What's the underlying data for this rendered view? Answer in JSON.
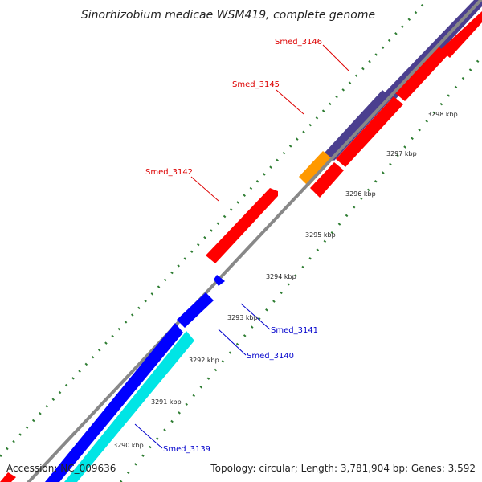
{
  "title": "Sinorhizobium medicae WSM419, complete genome",
  "footer": {
    "accession": "Accession: NC_009636",
    "summary": "Topology: circular; Length: 3,781,904 bp; Genes: 3,592"
  },
  "colors": {
    "backbone": "#888888",
    "tick": "#2e7d32",
    "forward_gene": "#ff0000",
    "reverse_gene": "#0000ff",
    "cyan_track": "#00e5e5",
    "purple_track": "#4b3f8f",
    "orange_track": "#ff9900",
    "forward_label": "#dd0000",
    "reverse_label": "#0000cc"
  },
  "ticks": [
    "3290 kbp",
    "3291 kbp",
    "3292 kbp",
    "3293 kbp",
    "3294 kbp",
    "3295 kbp",
    "3296 kbp",
    "3297 kbp",
    "3298 kbp"
  ],
  "genes": [
    {
      "name": "Smed_3146",
      "strand": "forward"
    },
    {
      "name": "Smed_3145",
      "strand": "forward"
    },
    {
      "name": "Smed_3142",
      "strand": "forward"
    },
    {
      "name": "Smed_3141",
      "strand": "reverse"
    },
    {
      "name": "Smed_3140",
      "strand": "reverse"
    },
    {
      "name": "Smed_3139",
      "strand": "reverse"
    }
  ]
}
